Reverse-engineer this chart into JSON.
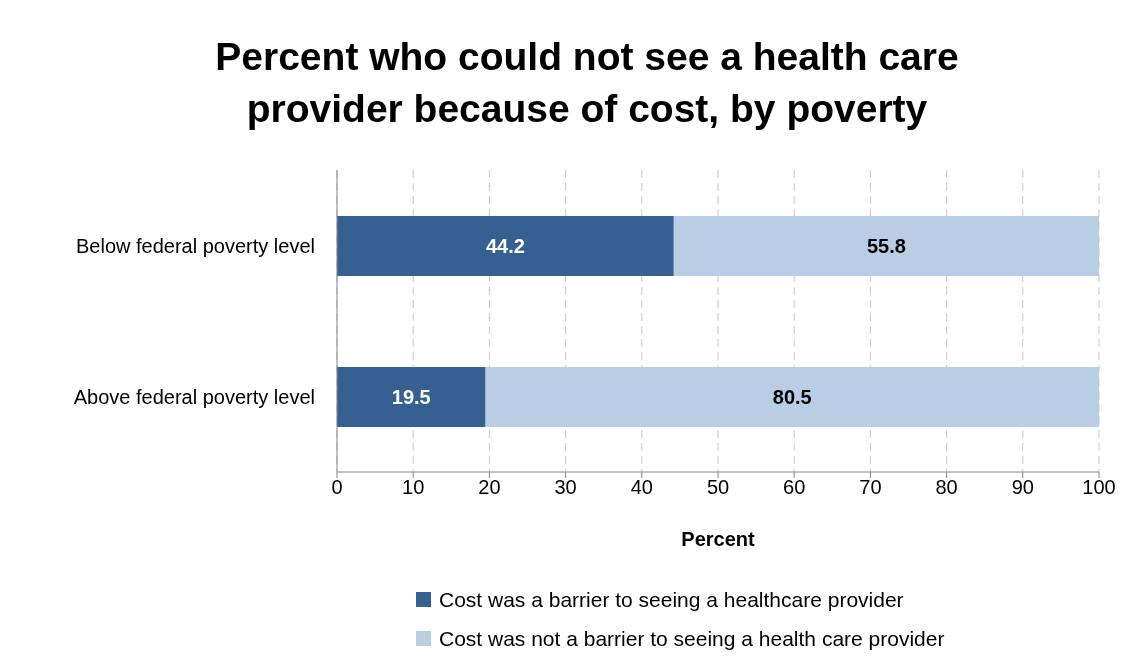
{
  "chart_data": {
    "type": "bar",
    "title": "Percent who could not see a health care provider because of cost, by poverty",
    "xlabel": "Percent",
    "orientation": "horizontal",
    "stacked": true,
    "categories": [
      "Below federal poverty level",
      "Above federal poverty level"
    ],
    "series": [
      {
        "name": "Cost was a barrier to seeing a healthcare provider",
        "color": "#376092",
        "values": [
          44.2,
          19.5
        ]
      },
      {
        "name": "Cost was not a barrier to seeing a health care provider",
        "color": "#b9cde5",
        "values": [
          55.8,
          80.5
        ]
      }
    ],
    "xlim": [
      0,
      100
    ],
    "xticks": [
      0,
      10,
      20,
      30,
      40,
      50,
      60,
      70,
      80,
      90,
      100
    ],
    "grid": "x",
    "legend": "bottom",
    "data_labels": true
  }
}
